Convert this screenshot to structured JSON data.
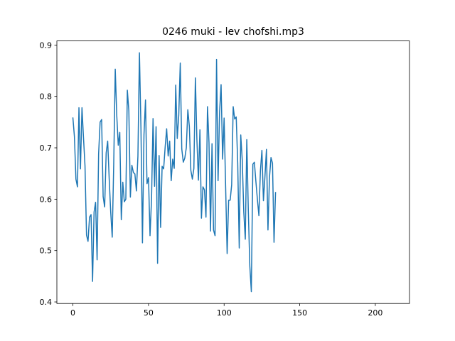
{
  "chart_data": {
    "type": "line",
    "title": "0246 muki - lev chofshi.mp3",
    "xlabel": "",
    "ylabel": "",
    "xlim": [
      -10.6,
      222.6
    ],
    "ylim": [
      0.397,
      0.908
    ],
    "xticks": [
      0,
      50,
      100,
      150,
      200
    ],
    "yticks": [
      0.4,
      0.5,
      0.6,
      0.7,
      0.8,
      0.9
    ],
    "xtick_labels": [
      "0",
      "50",
      "100",
      "150",
      "200"
    ],
    "ytick_labels": [
      "0.4",
      "0.5",
      "0.6",
      "0.7",
      "0.8",
      "0.9"
    ],
    "grid": false,
    "legend": null,
    "series": [
      {
        "color": "#1f77b4",
        "values": [
          0.758,
          0.722,
          0.639,
          0.624,
          0.778,
          0.659,
          0.778,
          0.72,
          0.665,
          0.53,
          0.518,
          0.565,
          0.57,
          0.44,
          0.575,
          0.594,
          0.482,
          0.688,
          0.75,
          0.755,
          0.605,
          0.585,
          0.69,
          0.713,
          0.64,
          0.575,
          0.526,
          0.668,
          0.853,
          0.763,
          0.705,
          0.73,
          0.56,
          0.633,
          0.595,
          0.6,
          0.812,
          0.772,
          0.604,
          0.666,
          0.652,
          0.649,
          0.616,
          0.684,
          0.885,
          0.738,
          0.515,
          0.725,
          0.793,
          0.63,
          0.642,
          0.529,
          0.6,
          0.757,
          0.625,
          0.741,
          0.475,
          0.685,
          0.545,
          0.664,
          0.659,
          0.701,
          0.737,
          0.684,
          0.713,
          0.636,
          0.678,
          0.66,
          0.822,
          0.718,
          0.763,
          0.865,
          0.698,
          0.672,
          0.68,
          0.7,
          0.774,
          0.742,
          0.656,
          0.639,
          0.66,
          0.836,
          0.716,
          0.637,
          0.735,
          0.563,
          0.624,
          0.618,
          0.565,
          0.78,
          0.71,
          0.538,
          0.708,
          0.54,
          0.529,
          0.872,
          0.636,
          0.77,
          0.823,
          0.678,
          0.758,
          0.624,
          0.494,
          0.598,
          0.598,
          0.628,
          0.78,
          0.756,
          0.76,
          0.67,
          0.505,
          0.725,
          0.676,
          0.575,
          0.522,
          0.716,
          0.578,
          0.47,
          0.42,
          0.668,
          0.672,
          0.635,
          0.6,
          0.568,
          0.655,
          0.695,
          0.597,
          0.644,
          0.697,
          0.54,
          0.642,
          0.681,
          0.67,
          0.516,
          0.613
        ]
      }
    ]
  }
}
